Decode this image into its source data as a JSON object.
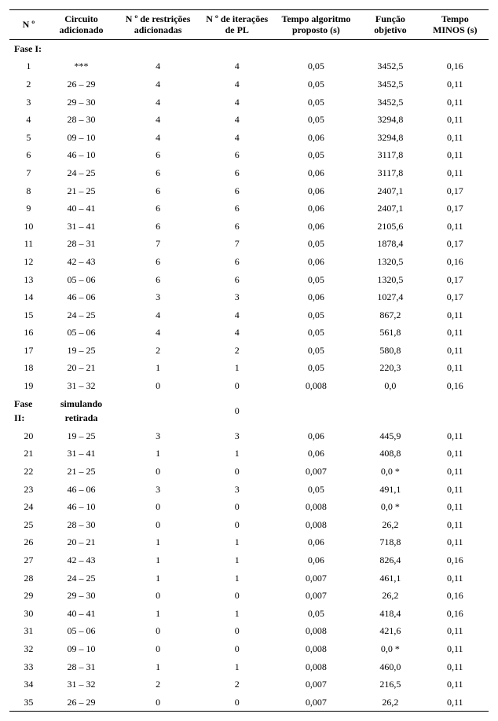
{
  "columns": [
    "N º",
    "Circuito adicionado",
    "N º de restrições adicionadas",
    "N º de iterações de PL",
    "Tempo algoritmo proposto (s)",
    "Função objetivo",
    "Tempo MINOS (s)"
  ],
  "col_widths": [
    "8%",
    "14%",
    "18%",
    "15%",
    "18%",
    "13%",
    "14%"
  ],
  "phase1_label": "Fase I:",
  "phase2_label": "Fase II:",
  "phase2_sub": "simulando retirada",
  "phase1": [
    {
      "n": "1",
      "c": "***",
      "r": "4",
      "it": "4",
      "tp": "0,05",
      "fo": "3452,5",
      "tm": "0,16"
    },
    {
      "n": "2",
      "c": "26 – 29",
      "r": "4",
      "it": "4",
      "tp": "0,05",
      "fo": "3452,5",
      "tm": "0,11"
    },
    {
      "n": "3",
      "c": "29 – 30",
      "r": "4",
      "it": "4",
      "tp": "0,05",
      "fo": "3452,5",
      "tm": "0,11"
    },
    {
      "n": "4",
      "c": "28 – 30",
      "r": "4",
      "it": "4",
      "tp": "0,05",
      "fo": "3294,8",
      "tm": "0,11"
    },
    {
      "n": "5",
      "c": "09 – 10",
      "r": "4",
      "it": "4",
      "tp": "0,06",
      "fo": "3294,8",
      "tm": "0,11"
    },
    {
      "n": "6",
      "c": "46 – 10",
      "r": "6",
      "it": "6",
      "tp": "0,05",
      "fo": "3117,8",
      "tm": "0,11"
    },
    {
      "n": "7",
      "c": "24 – 25",
      "r": "6",
      "it": "6",
      "tp": "0,06",
      "fo": "3117,8",
      "tm": "0,11"
    },
    {
      "n": "8",
      "c": "21 – 25",
      "r": "6",
      "it": "6",
      "tp": "0,06",
      "fo": "2407,1",
      "tm": "0,17"
    },
    {
      "n": "9",
      "c": "40 – 41",
      "r": "6",
      "it": "6",
      "tp": "0,06",
      "fo": "2407,1",
      "tm": "0,17"
    },
    {
      "n": "10",
      "c": "31 – 41",
      "r": "6",
      "it": "6",
      "tp": "0,06",
      "fo": "2105,6",
      "tm": "0,11"
    },
    {
      "n": "11",
      "c": "28 – 31",
      "r": "7",
      "it": "7",
      "tp": "0,05",
      "fo": "1878,4",
      "tm": "0,17"
    },
    {
      "n": "12",
      "c": "42 – 43",
      "r": "6",
      "it": "6",
      "tp": "0,06",
      "fo": "1320,5",
      "tm": "0,16"
    },
    {
      "n": "13",
      "c": "05 – 06",
      "r": "6",
      "it": "6",
      "tp": "0,05",
      "fo": "1320,5",
      "tm": "0,17"
    },
    {
      "n": "14",
      "c": "46 – 06",
      "r": "3",
      "it": "3",
      "tp": "0,06",
      "fo": "1027,4",
      "tm": "0,17"
    },
    {
      "n": "15",
      "c": "24 – 25",
      "r": "4",
      "it": "4",
      "tp": "0,05",
      "fo": "867,2",
      "tm": "0,11"
    },
    {
      "n": "16",
      "c": "05 – 06",
      "r": "4",
      "it": "4",
      "tp": "0,05",
      "fo": "561,8",
      "tm": "0,11"
    },
    {
      "n": "17",
      "c": "19 – 25",
      "r": "2",
      "it": "2",
      "tp": "0,05",
      "fo": "580,8",
      "tm": "0,11"
    },
    {
      "n": "18",
      "c": "20 – 21",
      "r": "1",
      "it": "1",
      "tp": "0,05",
      "fo": "220,3",
      "tm": "0,11"
    },
    {
      "n": "19",
      "c": "31 – 32",
      "r": "0",
      "it": "0",
      "tp": "0,008",
      "fo": "0,0",
      "tm": "0,16"
    }
  ],
  "phase2_header_it": "0",
  "phase2": [
    {
      "n": "20",
      "c": "19 – 25",
      "r": "3",
      "it": "3",
      "tp": "0,06",
      "fo": "445,9",
      "tm": "0,11"
    },
    {
      "n": "21",
      "c": "31 – 41",
      "r": "1",
      "it": "1",
      "tp": "0,06",
      "fo": "408,8",
      "tm": "0,11"
    },
    {
      "n": "22",
      "c": "21 – 25",
      "r": "0",
      "it": "0",
      "tp": "0,007",
      "fo": "0,0 *",
      "tm": "0,11"
    },
    {
      "n": "23",
      "c": "46 – 06",
      "r": "3",
      "it": "3",
      "tp": "0,05",
      "fo": "491,1",
      "tm": "0,11"
    },
    {
      "n": "24",
      "c": "46 – 10",
      "r": "0",
      "it": "0",
      "tp": "0,008",
      "fo": "0,0 *",
      "tm": "0,11"
    },
    {
      "n": "25",
      "c": "28 – 30",
      "r": "0",
      "it": "0",
      "tp": "0,008",
      "fo": "26,2",
      "tm": "0,11"
    },
    {
      "n": "26",
      "c": "20 – 21",
      "r": "1",
      "it": "1",
      "tp": "0,06",
      "fo": "718,8",
      "tm": "0,11"
    },
    {
      "n": "27",
      "c": "42 – 43",
      "r": "1",
      "it": "1",
      "tp": "0,06",
      "fo": "826,4",
      "tm": "0,16"
    },
    {
      "n": "28",
      "c": "24 – 25",
      "r": "1",
      "it": "1",
      "tp": "0,007",
      "fo": "461,1",
      "tm": "0,11"
    },
    {
      "n": "29",
      "c": "29 – 30",
      "r": "0",
      "it": "0",
      "tp": "0,007",
      "fo": "26,2",
      "tm": "0,16"
    },
    {
      "n": "30",
      "c": "40 – 41",
      "r": "1",
      "it": "1",
      "tp": "0,05",
      "fo": "418,4",
      "tm": "0,16"
    },
    {
      "n": "31",
      "c": "05 – 06",
      "r": "0",
      "it": "0",
      "tp": "0,008",
      "fo": "421,6",
      "tm": "0,11"
    },
    {
      "n": "32",
      "c": "09 – 10",
      "r": "0",
      "it": "0",
      "tp": "0,008",
      "fo": "0,0 *",
      "tm": "0,11"
    },
    {
      "n": "33",
      "c": "28 – 31",
      "r": "1",
      "it": "1",
      "tp": "0,008",
      "fo": "460,0",
      "tm": "0,11"
    },
    {
      "n": "34",
      "c": "31 – 32",
      "r": "2",
      "it": "2",
      "tp": "0,007",
      "fo": "216,5",
      "tm": "0,11"
    },
    {
      "n": "35",
      "c": "26 – 29",
      "r": "0",
      "it": "0",
      "tp": "0,007",
      "fo": "26,2",
      "tm": "0,11"
    }
  ]
}
